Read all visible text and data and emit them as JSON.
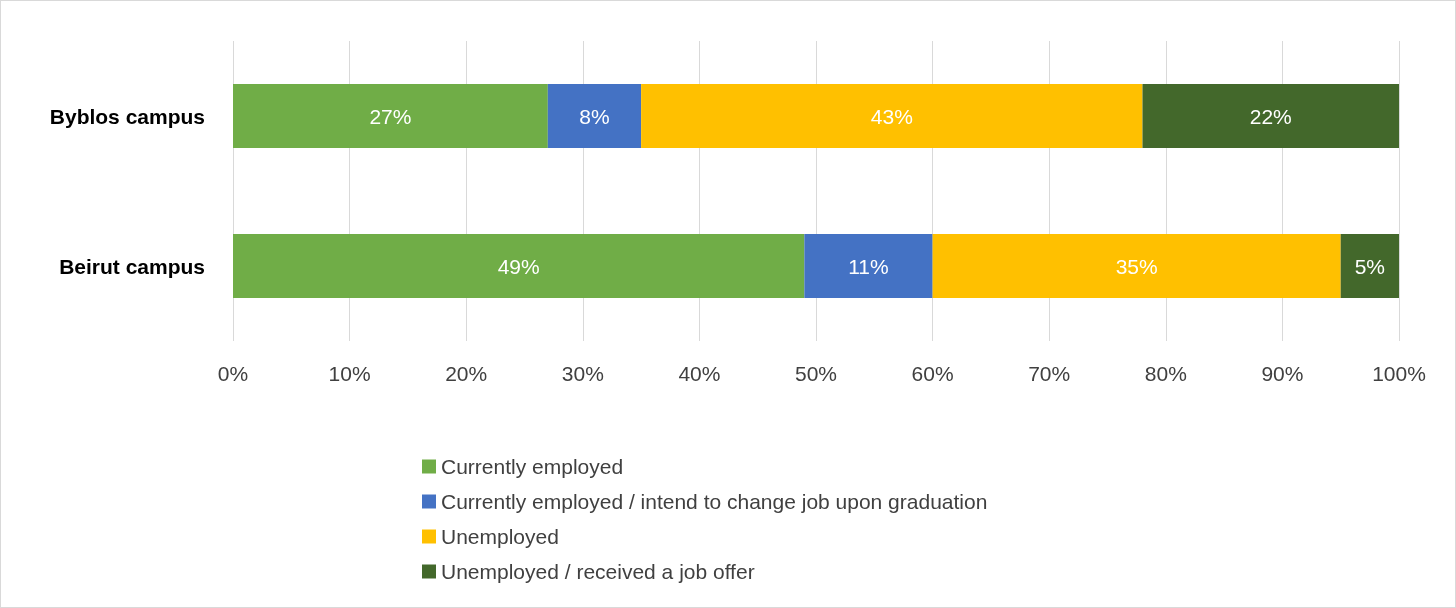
{
  "chart_data": {
    "type": "bar",
    "orientation": "horizontal",
    "stacked": true,
    "categories": [
      "Byblos campus",
      "Beirut campus"
    ],
    "series": [
      {
        "name": "Currently employed",
        "color": "#70ad47",
        "values": [
          27,
          49
        ],
        "value_labels": [
          "27%",
          "49%"
        ]
      },
      {
        "name": "Currently employed / intend to change job upon graduation",
        "color": "#4472c4",
        "values": [
          8,
          11
        ],
        "value_labels": [
          "8%",
          "11%"
        ]
      },
      {
        "name": "Unemployed",
        "color": "#ffc000",
        "values": [
          43,
          35
        ],
        "value_labels": [
          "43%",
          "35%"
        ]
      },
      {
        "name": "Unemployed / received a job offer",
        "color": "#43682b",
        "values": [
          22,
          5
        ],
        "value_labels": [
          "22%",
          "5%"
        ]
      }
    ],
    "xlim": [
      0,
      100
    ],
    "xticks": [
      {
        "value": 0,
        "label": "0%"
      },
      {
        "value": 10,
        "label": "10%"
      },
      {
        "value": 20,
        "label": "20%"
      },
      {
        "value": 30,
        "label": "30%"
      },
      {
        "value": 40,
        "label": "40%"
      },
      {
        "value": 50,
        "label": "50%"
      },
      {
        "value": 60,
        "label": "60%"
      },
      {
        "value": 70,
        "label": "70%"
      },
      {
        "value": 80,
        "label": "80%"
      },
      {
        "value": 90,
        "label": "90%"
      },
      {
        "value": 100,
        "label": "100%"
      }
    ],
    "grid": "x",
    "legend": "bottom"
  }
}
